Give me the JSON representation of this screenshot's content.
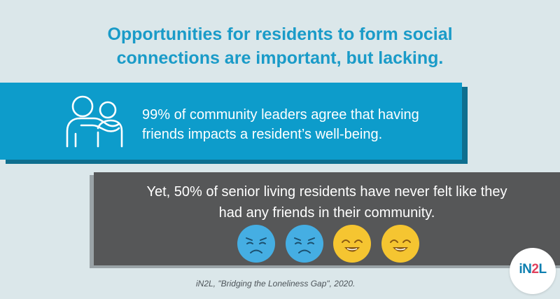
{
  "title": {
    "line1": "Opportunities for residents to form social",
    "line2": "connections are important, but lacking."
  },
  "stat_leaders": {
    "line1": "99% of community leaders agree that having",
    "line2": "friends impacts a resident’s well-being.",
    "icon": "friends-embrace-icon"
  },
  "stat_residents": {
    "line1": "Yet, 50% of senior living residents have never felt like they",
    "line2": "had any friends in their community.",
    "faces": [
      "sad-face-icon",
      "sad-face-icon",
      "happy-face-icon",
      "happy-face-icon"
    ]
  },
  "logo": {
    "part1": "iN",
    "part2": "2",
    "part3": "L"
  },
  "source": "iN2L, \"Bridging the Loneliness Gap\", 2020.",
  "colors": {
    "background": "#dbe7ea",
    "title": "#1a9bc8",
    "blue_panel": "#0d9ccb",
    "gray_panel": "#565758",
    "sad_face": "#45aee3",
    "happy_face": "#f5c531",
    "logo_blue": "#0e7fb0",
    "logo_red": "#e0415d"
  }
}
